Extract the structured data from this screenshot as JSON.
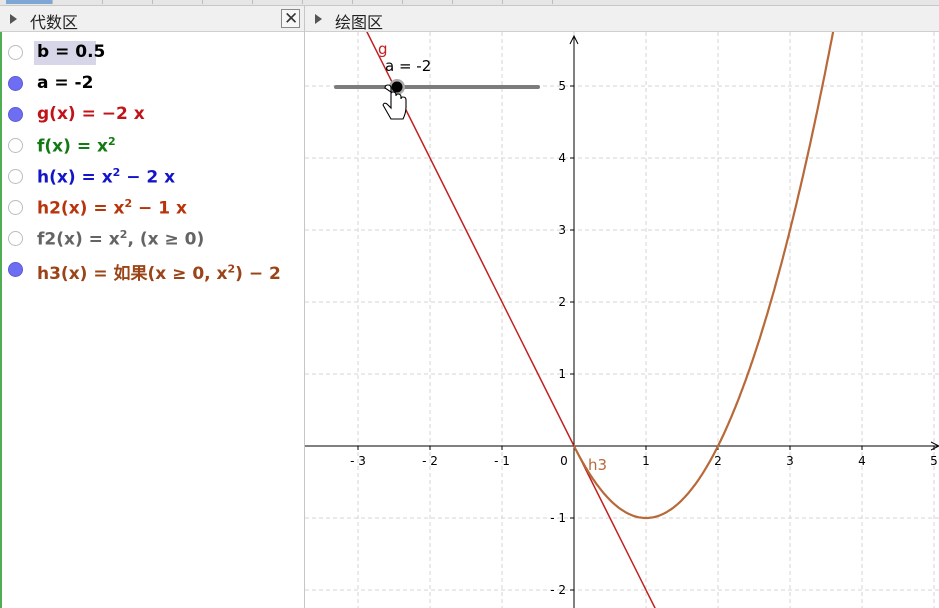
{
  "algebra": {
    "title": "代数区",
    "close_symbol": "✕",
    "items": [
      {
        "parts": [
          {
            "t": "b = 0.5"
          }
        ],
        "color": "#000000",
        "visible": false,
        "selected": true
      },
      {
        "parts": [
          {
            "t": "a = -2"
          }
        ],
        "color": "#000000",
        "visible": true,
        "selected": false
      },
      {
        "parts": [
          {
            "t": "g(x)  =  −2 x"
          }
        ],
        "color": "#c0141a",
        "visible": true,
        "selected": false
      },
      {
        "parts": [
          {
            "t": "f(x)  =  x"
          },
          {
            "sup": "2"
          }
        ],
        "color": "#127a12",
        "visible": false,
        "selected": false
      },
      {
        "parts": [
          {
            "t": "h(x)  =  x"
          },
          {
            "sup": "2"
          },
          {
            "t": " − 2 x"
          }
        ],
        "color": "#1515c8",
        "visible": false,
        "selected": false
      },
      {
        "parts": [
          {
            "t": "h2(x)  =  x"
          },
          {
            "sup": "2"
          },
          {
            "t": " − 1 x"
          }
        ],
        "color": "#b8350c",
        "visible": false,
        "selected": false
      },
      {
        "parts": [
          {
            "t": "f2(x)  =  x"
          },
          {
            "sup": "2"
          },
          {
            "t": ",    (x ≥ 0)"
          }
        ],
        "color": "#646464",
        "visible": false,
        "selected": false
      },
      {
        "parts": [
          {
            "t": "h3(x)  =  如果(x ≥ 0, x"
          },
          {
            "sup": "2"
          },
          {
            "t": ") − 2"
          }
        ],
        "color": "#9a4418",
        "visible": true,
        "selected": false
      }
    ]
  },
  "graphics": {
    "title": "绘图区",
    "slider_label": "a = -2",
    "label_g": "g",
    "label_h3": "h3",
    "color_g": "#c41e1e",
    "color_h3": "#b8693a",
    "x_ticks": [
      "-3",
      "-2",
      "-1",
      "0",
      "1",
      "2",
      "3",
      "4",
      "5"
    ],
    "y_ticks": [
      "-2",
      "-1",
      "1",
      "2",
      "3",
      "4",
      "5"
    ],
    "cursor_icon": "hand-pointer"
  }
}
